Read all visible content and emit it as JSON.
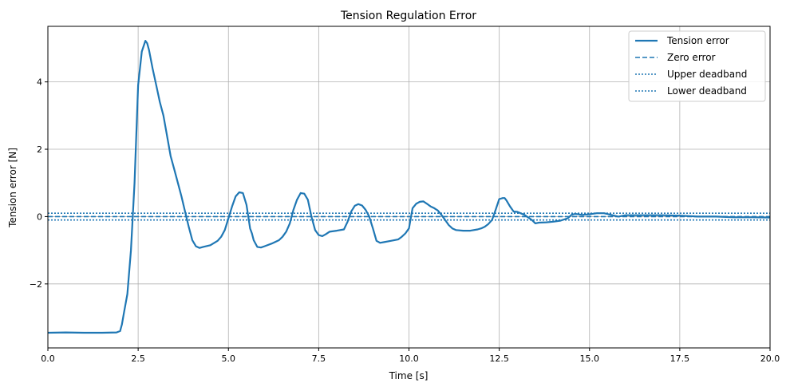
{
  "chart_data": {
    "type": "line",
    "title": "Tension Regulation Error",
    "xlabel": "Time [s]",
    "ylabel": "Tension error [N]",
    "xlim": [
      0,
      20
    ],
    "ylim": [
      -3.9,
      5.65
    ],
    "xticks": [
      0,
      2.5,
      5,
      7.5,
      10,
      12.5,
      15,
      17.5,
      20
    ],
    "xtick_labels": [
      "0.0",
      "2.5",
      "5.0",
      "7.5",
      "10.0",
      "12.5",
      "15.0",
      "17.5",
      "20.0"
    ],
    "yticks": [
      -2,
      0,
      2,
      4
    ],
    "ytick_labels": [
      "−2",
      "0",
      "2",
      "4"
    ],
    "grid": true,
    "legend_position": "top-right",
    "colors": {
      "series": "#1f77b4",
      "grid": "#b0b0b0"
    },
    "series": [
      {
        "name": "Tension error",
        "style": "solid",
        "x": [
          0,
          0.5,
          1.0,
          1.5,
          1.9,
          2.0,
          2.05,
          2.1,
          2.2,
          2.3,
          2.4,
          2.5,
          2.6,
          2.7,
          2.75,
          2.8,
          2.9,
          3.0,
          3.1,
          3.2,
          3.3,
          3.4,
          3.5,
          3.6,
          3.7,
          3.8,
          3.9,
          4.0,
          4.1,
          4.2,
          4.3,
          4.5,
          4.7,
          4.8,
          4.9,
          5.0,
          5.1,
          5.2,
          5.3,
          5.4,
          5.5,
          5.6,
          5.65,
          5.7,
          5.8,
          5.9,
          6.0,
          6.2,
          6.4,
          6.5,
          6.6,
          6.7,
          6.8,
          6.9,
          7.0,
          7.1,
          7.2,
          7.3,
          7.4,
          7.5,
          7.6,
          7.7,
          7.8,
          8.0,
          8.2,
          8.3,
          8.4,
          8.5,
          8.6,
          8.7,
          8.8,
          8.9,
          9.0,
          9.1,
          9.2,
          9.3,
          9.5,
          9.7,
          9.8,
          9.9,
          10.0,
          10.1,
          10.2,
          10.3,
          10.4,
          10.5,
          10.6,
          10.7,
          10.8,
          10.9,
          11.0,
          11.1,
          11.2,
          11.3,
          11.5,
          11.7,
          11.9,
          12.0,
          12.1,
          12.2,
          12.3,
          12.4,
          12.5,
          12.6,
          12.65,
          12.7,
          12.8,
          12.9,
          13.0,
          13.2,
          13.4,
          13.5,
          13.6,
          13.8,
          14.0,
          14.2,
          14.4,
          14.5,
          14.6,
          14.8,
          15.0,
          15.2,
          15.4,
          15.6,
          15.8,
          16.0,
          16.5,
          17.0,
          17.5,
          18.0,
          18.5,
          19.0,
          19.5,
          20.0
        ],
        "values": [
          -3.45,
          -3.44,
          -3.45,
          -3.45,
          -3.44,
          -3.4,
          -3.2,
          -2.9,
          -2.3,
          -1.0,
          1.0,
          3.9,
          4.9,
          5.22,
          5.15,
          4.95,
          4.4,
          3.9,
          3.4,
          3.0,
          2.4,
          1.8,
          1.4,
          1.0,
          0.6,
          0.15,
          -0.3,
          -0.7,
          -0.88,
          -0.93,
          -0.9,
          -0.85,
          -0.72,
          -0.6,
          -0.4,
          -0.05,
          0.3,
          0.6,
          0.72,
          0.7,
          0.35,
          -0.35,
          -0.5,
          -0.7,
          -0.9,
          -0.92,
          -0.88,
          -0.8,
          -0.7,
          -0.6,
          -0.45,
          -0.2,
          0.2,
          0.5,
          0.7,
          0.68,
          0.5,
          0.0,
          -0.4,
          -0.55,
          -0.58,
          -0.52,
          -0.45,
          -0.42,
          -0.38,
          -0.15,
          0.15,
          0.32,
          0.37,
          0.33,
          0.2,
          0.0,
          -0.35,
          -0.72,
          -0.78,
          -0.76,
          -0.72,
          -0.68,
          -0.6,
          -0.5,
          -0.35,
          0.25,
          0.38,
          0.44,
          0.45,
          0.38,
          0.3,
          0.25,
          0.18,
          0.05,
          -0.1,
          -0.25,
          -0.35,
          -0.4,
          -0.42,
          -0.42,
          -0.38,
          -0.35,
          -0.3,
          -0.22,
          -0.1,
          0.2,
          0.52,
          0.55,
          0.55,
          0.48,
          0.3,
          0.15,
          0.14,
          0.05,
          -0.1,
          -0.2,
          -0.18,
          -0.17,
          -0.15,
          -0.12,
          -0.05,
          0.05,
          0.08,
          0.05,
          0.07,
          0.1,
          0.1,
          0.05,
          0.0,
          0.04,
          0.04,
          0.04,
          0.03,
          0.0,
          0.0,
          -0.02,
          -0.02,
          -0.03
        ]
      },
      {
        "name": "Zero error",
        "style": "dashed",
        "y": 0
      },
      {
        "name": "Upper deadband",
        "style": "dotted",
        "y": 0.1
      },
      {
        "name": "Lower deadband",
        "style": "dotted",
        "y": -0.1
      }
    ]
  }
}
